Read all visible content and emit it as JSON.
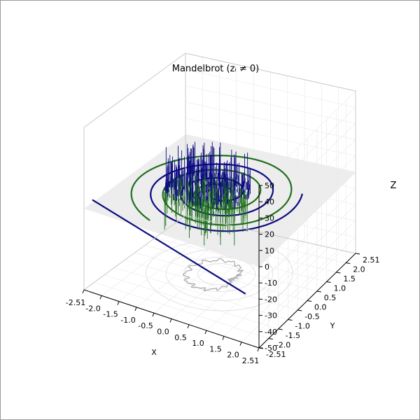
{
  "chart_data": {
    "type": "3d-line-surface",
    "title": "Mandelbrot (zᵢ ≠ 0)",
    "xlabel": "X",
    "ylabel": "Y",
    "zlabel": "Z",
    "xlim": [
      -2.51,
      2.51
    ],
    "ylim": [
      -2.51,
      2.51
    ],
    "zlim": [
      -50,
      50
    ],
    "x_ticks": [
      "-2.51",
      "-2.0",
      "-1.5",
      "-1.0",
      "-0.5",
      "0.0",
      "0.5",
      "1.0",
      "1.5",
      "2.0",
      "2.51"
    ],
    "y_ticks": [
      "-2.51",
      "-2.0",
      "-1.5",
      "-1.0",
      "-0.5",
      "0.0",
      "0.5",
      "1.0",
      "1.5",
      "2.0",
      "2.51"
    ],
    "z_ticks": [
      "-50",
      "-40",
      "-30",
      "-20",
      "-10",
      "0",
      "10",
      "20",
      "30",
      "40",
      "50"
    ],
    "grid": true,
    "plane_z": 0,
    "series": [
      {
        "color": "#1f6e1f",
        "spiral": {
          "r0": 0.25,
          "r1": 2.3,
          "turns": 2.6,
          "phase": 0.6
        }
      },
      {
        "color": "#0a0a80",
        "spiral": {
          "r0": 0.2,
          "r1": 2.1,
          "turns": 2.5,
          "phase": 3.6
        }
      }
    ],
    "spike_region": {
      "x_range": [
        -1.6,
        0.7
      ],
      "y_range": [
        -0.9,
        1.1
      ]
    },
    "projection_contours_radii": [
      0.55,
      0.9,
      1.35,
      1.85
    ],
    "colors": {
      "green": "#1f6e1f",
      "blue": "#0a0a80",
      "pane": "#ebebeb",
      "shadow": "#9a9a9a"
    }
  }
}
